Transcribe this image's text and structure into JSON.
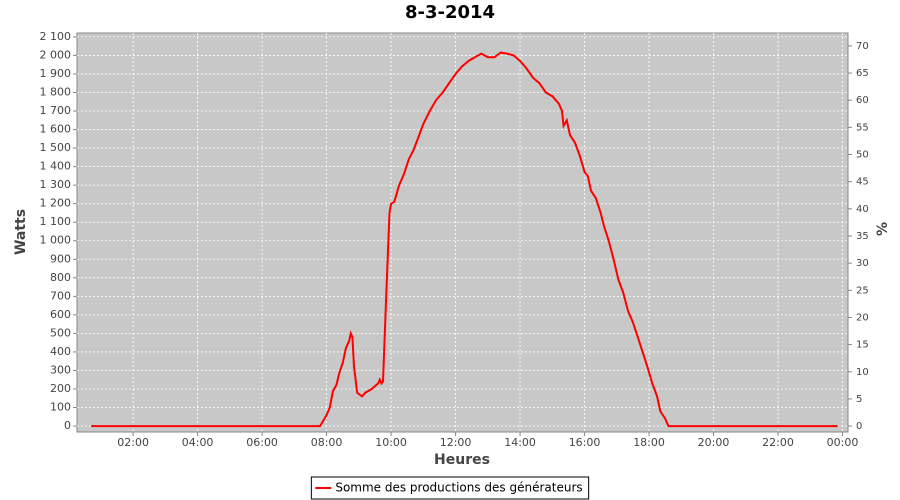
{
  "chart_data": {
    "type": "line",
    "title": "8-3-2014",
    "x_label": "Heures",
    "y_label": "Watts",
    "y2_label": "%",
    "x": [
      0.7,
      7.5,
      7.8,
      7.9,
      8.0,
      8.1,
      8.2,
      8.3,
      8.4,
      8.5,
      8.6,
      8.7,
      8.75,
      8.8,
      8.85,
      8.95,
      9.1,
      9.2,
      9.4,
      9.6,
      9.65,
      9.7,
      9.75,
      9.85,
      9.95,
      10.0,
      10.1,
      10.25,
      10.4,
      10.55,
      10.7,
      10.85,
      11.0,
      11.2,
      11.4,
      11.6,
      11.8,
      12.0,
      12.2,
      12.4,
      12.6,
      12.8,
      13.0,
      13.2,
      13.4,
      13.6,
      13.8,
      14.0,
      14.2,
      14.4,
      14.6,
      14.8,
      15.0,
      15.2,
      15.3,
      15.35,
      15.45,
      15.55,
      15.7,
      15.85,
      16.0,
      16.1,
      16.2,
      16.35,
      16.5,
      16.6,
      16.75,
      16.9,
      17.05,
      17.2,
      17.35,
      17.5,
      17.65,
      17.8,
      17.95,
      18.1,
      18.25,
      18.35,
      18.5,
      18.6,
      23.85
    ],
    "series": [
      {
        "name": "Somme des productions des  générateurs",
        "color": "#ff0000",
        "values": [
          0,
          0,
          0,
          30,
          60,
          100,
          190,
          220,
          290,
          340,
          420,
          460,
          500,
          480,
          320,
          180,
          160,
          180,
          200,
          230,
          250,
          230,
          240,
          700,
          1150,
          1200,
          1210,
          1300,
          1360,
          1440,
          1490,
          1560,
          1630,
          1700,
          1760,
          1800,
          1850,
          1900,
          1940,
          1970,
          1990,
          2010,
          1990,
          1990,
          2015,
          2010,
          2000,
          1970,
          1930,
          1880,
          1850,
          1800,
          1780,
          1740,
          1700,
          1620,
          1650,
          1570,
          1530,
          1460,
          1370,
          1350,
          1270,
          1230,
          1150,
          1080,
          1000,
          900,
          790,
          720,
          620,
          560,
          480,
          400,
          320,
          230,
          160,
          80,
          40,
          0,
          0
        ]
      }
    ],
    "xlim": [
      0.26,
      24.17
    ],
    "xticks": [
      {
        "value": 2,
        "label": "02:00"
      },
      {
        "value": 4,
        "label": "04:00"
      },
      {
        "value": 6,
        "label": "06:00"
      },
      {
        "value": 8,
        "label": "08:00"
      },
      {
        "value": 10,
        "label": "10:00"
      },
      {
        "value": 12,
        "label": "12:00"
      },
      {
        "value": 14,
        "label": "14:00"
      },
      {
        "value": 16,
        "label": "16:00"
      },
      {
        "value": 18,
        "label": "18:00"
      },
      {
        "value": 20,
        "label": "20:00"
      },
      {
        "value": 22,
        "label": "22:00"
      },
      {
        "value": 24,
        "label": "00:00"
      }
    ],
    "ylim": [
      -32,
      2121
    ],
    "yticks": [
      0,
      100,
      200,
      300,
      400,
      500,
      600,
      700,
      800,
      900,
      {
        "value": 1000,
        "label": "1 000"
      },
      {
        "value": 1100,
        "label": "1 100"
      },
      {
        "value": 1200,
        "label": "1 200"
      },
      {
        "value": 1300,
        "label": "1 300"
      },
      {
        "value": 1400,
        "label": "1 400"
      },
      {
        "value": 1500,
        "label": "1 500"
      },
      {
        "value": 1600,
        "label": "1 600"
      },
      {
        "value": 1700,
        "label": "1 700"
      },
      {
        "value": 1800,
        "label": "1 800"
      },
      {
        "value": 1900,
        "label": "1 900"
      },
      {
        "value": 2000,
        "label": "2 000"
      },
      {
        "value": 2100,
        "label": "2 100"
      }
    ],
    "y2lim": [
      -1.09,
      72.37
    ],
    "y2ticks": [
      0,
      5,
      10,
      15,
      20,
      25,
      30,
      35,
      40,
      45,
      50,
      55,
      60,
      65,
      70
    ],
    "grid": true,
    "legend": "bottom"
  }
}
